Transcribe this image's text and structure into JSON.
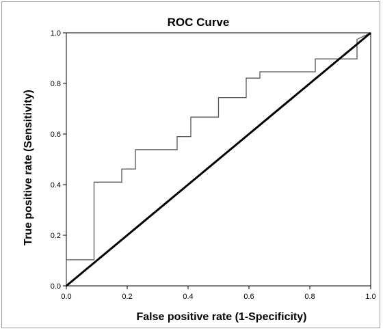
{
  "chart_data": {
    "type": "line",
    "title": "ROC Curve",
    "xlabel": "False positive rate (1-Specificity)",
    "ylabel": "True positive rate (Sensitivity)",
    "xlim": [
      0.0,
      1.0
    ],
    "ylim": [
      0.0,
      1.0
    ],
    "xticks": [
      "0.0",
      "0.2",
      "0.4",
      "0.6",
      "0.8",
      "1.0"
    ],
    "yticks": [
      "0.0",
      "0.2",
      "0.4",
      "0.6",
      "0.8",
      "1.0"
    ],
    "grid": false,
    "series": [
      {
        "style": "step",
        "x": [
          0.0,
          0.0,
          0.091,
          0.091,
          0.182,
          0.182,
          0.227,
          0.227,
          0.364,
          0.364,
          0.409,
          0.409,
          0.5,
          0.5,
          0.591,
          0.591,
          0.636,
          0.636,
          0.818,
          0.818,
          0.955,
          0.955,
          1.0
        ],
        "y": [
          0.0,
          0.103,
          0.103,
          0.41,
          0.41,
          0.462,
          0.462,
          0.538,
          0.538,
          0.59,
          0.59,
          0.667,
          0.667,
          0.744,
          0.744,
          0.821,
          0.821,
          0.846,
          0.846,
          0.897,
          0.897,
          0.974,
          1.0
        ],
        "color": "#555555"
      },
      {
        "style": "reference",
        "x": [
          0.0,
          1.0
        ],
        "y": [
          0.0,
          1.0
        ],
        "color": "#000000"
      }
    ]
  }
}
